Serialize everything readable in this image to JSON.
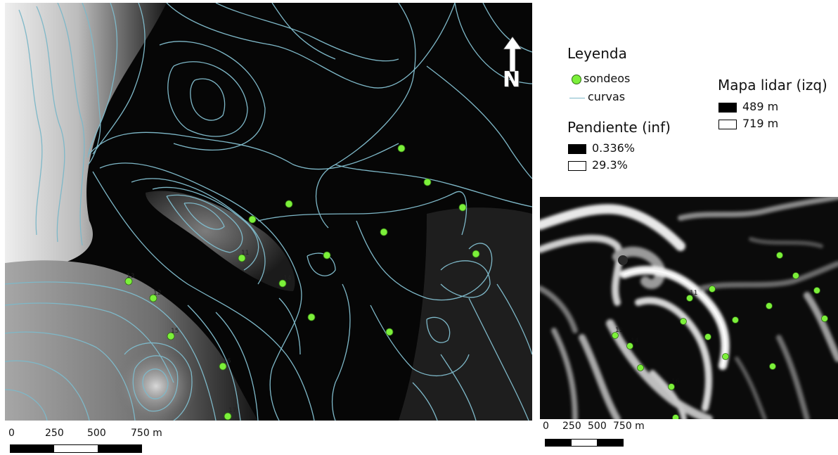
{
  "legend": {
    "title": "Leyenda",
    "points_label": "sondeos",
    "lines_label": "curvas",
    "slope_title": "Pendiente (inf)",
    "slope_min": "0.336%",
    "slope_max": "29.3%",
    "lidar_title": "Mapa lidar (izq)",
    "lidar_min": "489 m",
    "lidar_max": "719 m"
  },
  "north_arrow": {
    "letter": "N"
  },
  "scale_main": {
    "ticks": [
      "0",
      "250",
      "500",
      "750 m"
    ]
  },
  "scale_inset": {
    "ticks": [
      "0",
      "250",
      "500",
      "750 m"
    ]
  },
  "main_map": {
    "point_labels": [
      "11",
      "12",
      "13",
      "14",
      "15",
      "16",
      "17"
    ]
  },
  "inset_map": {
    "point_labels": [
      "11",
      "13",
      "14",
      "16"
    ]
  },
  "colors": {
    "point_fill": "#7cf03a",
    "contour": "#7eb8c8",
    "background_dark": "#050505",
    "background_light": "#ffffff"
  }
}
